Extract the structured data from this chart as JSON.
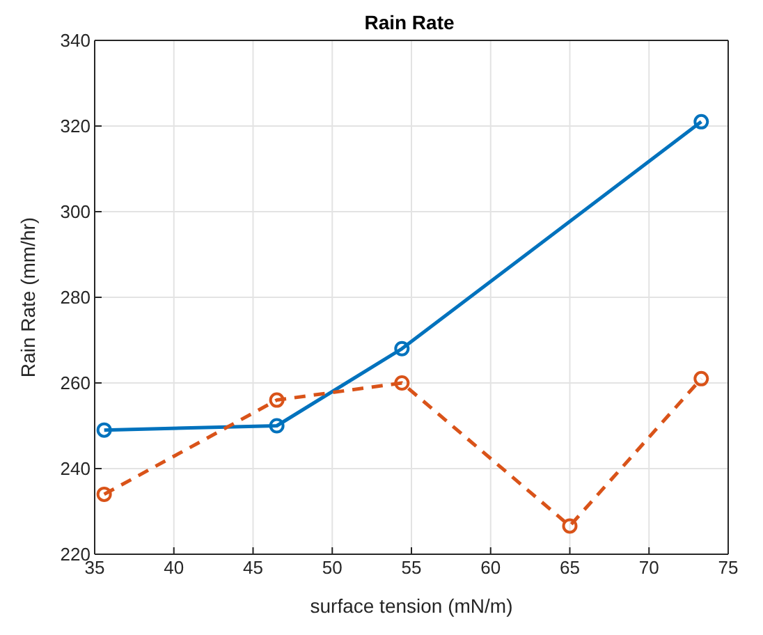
{
  "chart_data": {
    "type": "line",
    "title": "Rain Rate",
    "xlabel": "surface tension (mN/m)",
    "ylabel": "Rain Rate (mm/hr)",
    "xlim": [
      35,
      75
    ],
    "xticks": [
      35,
      40,
      45,
      50,
      55,
      60,
      65,
      70,
      75
    ],
    "ylim": [
      220,
      340
    ],
    "yticks": [
      220,
      240,
      260,
      280,
      300,
      320,
      340
    ],
    "grid": true,
    "marker": "circle",
    "series": [
      {
        "color": "#0072bd",
        "line_style": "solid",
        "x": [
          35.6,
          46.5,
          54.4,
          73.3
        ],
        "values": [
          249,
          250,
          268,
          321
        ]
      },
      {
        "color": "#d95319",
        "line_style": "dashed",
        "x": [
          35.6,
          46.5,
          54.4,
          65,
          73.3
        ],
        "values": [
          234,
          256,
          260,
          226.6,
          261
        ]
      }
    ]
  }
}
